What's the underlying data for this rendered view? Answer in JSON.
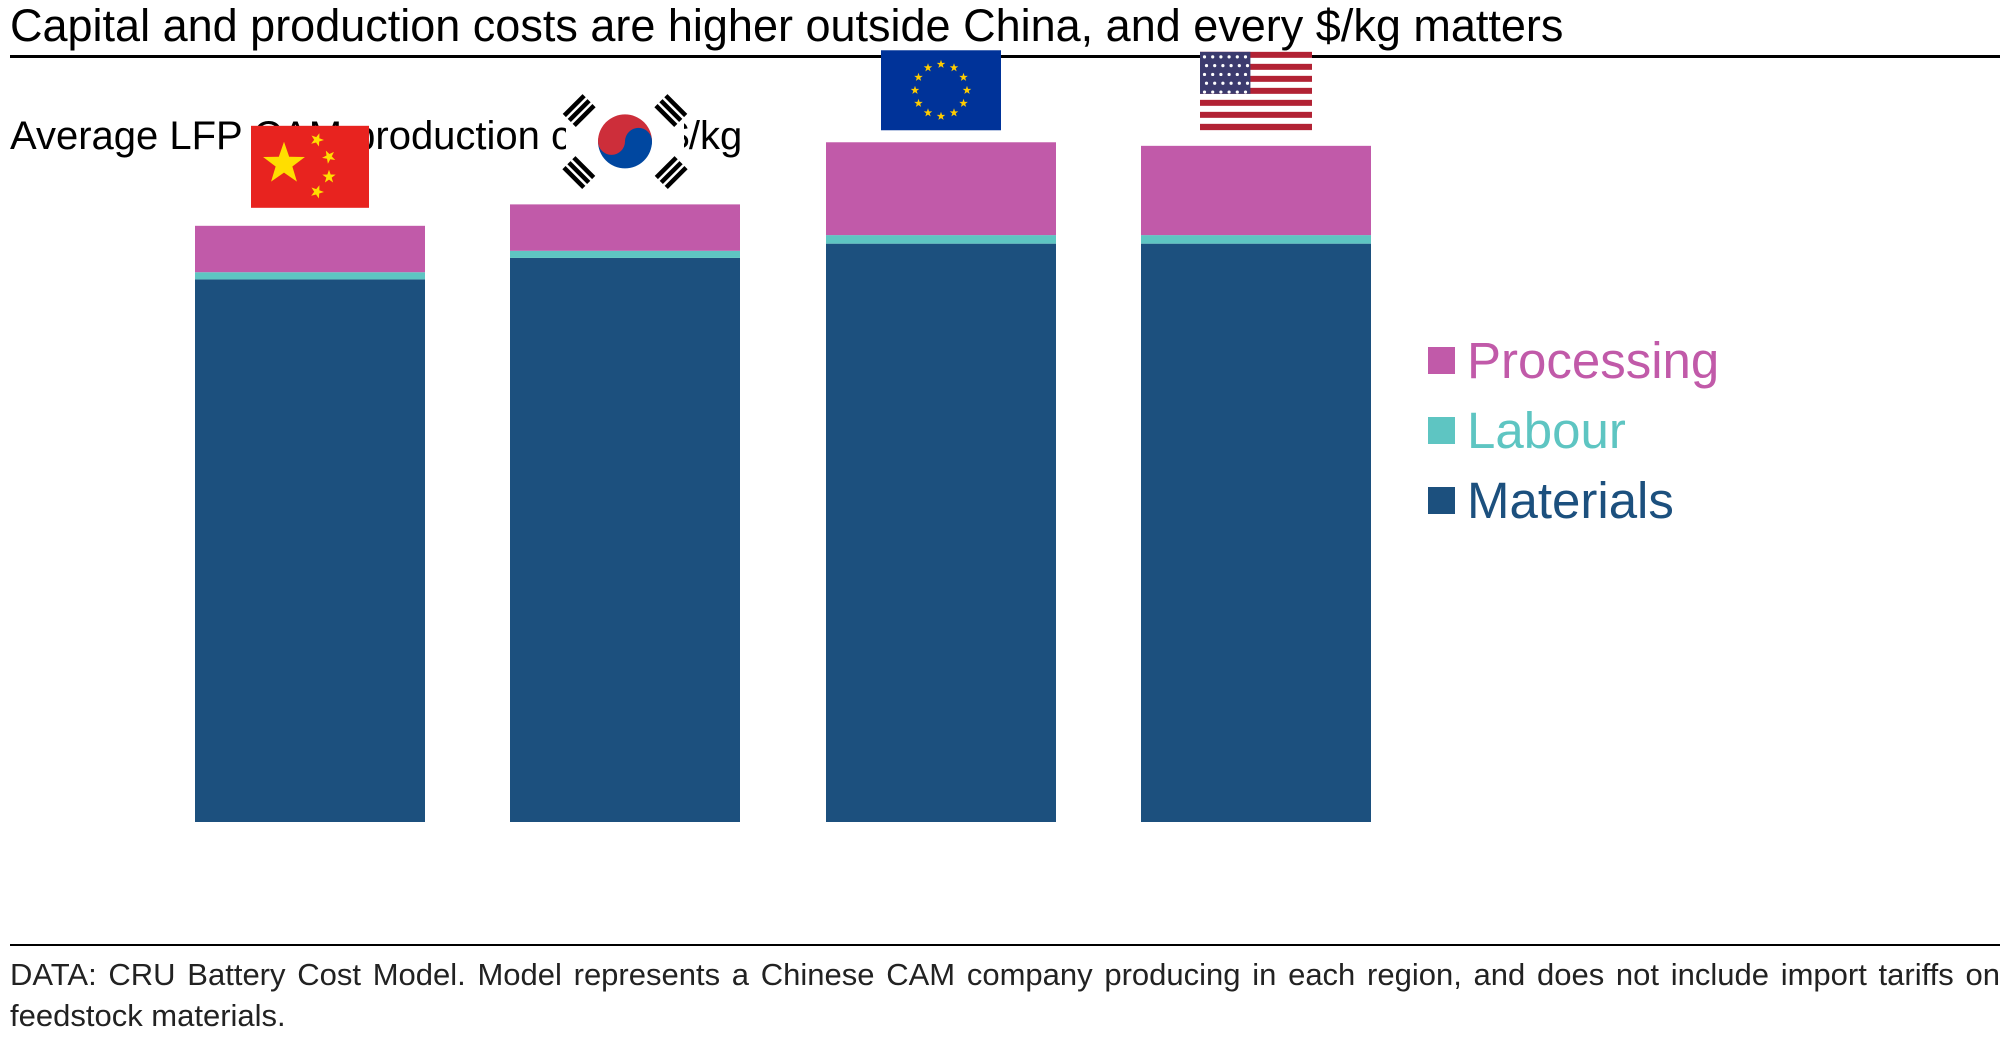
{
  "header": {
    "title": "Capital and production costs are higher outside China, and every $/kg matters"
  },
  "chart_data": {
    "type": "bar",
    "stacked": true,
    "title": "Average LFP CAM production costs, $/kg",
    "xlabel": "",
    "ylabel": "",
    "ylim": [
      0,
      10
    ],
    "grid": false,
    "legend_position": "right",
    "categories": [
      "China",
      "South Korea",
      "European Union",
      "United States"
    ],
    "category_icons": [
      "china-flag-icon",
      "south-korea-flag-icon",
      "eu-flag-icon",
      "us-flag-icon"
    ],
    "series": [
      {
        "name": "Materials",
        "color": "#1c507e",
        "values": [
          7.6,
          7.9,
          8.1,
          8.1
        ]
      },
      {
        "name": "Labour",
        "color": "#5ec5c2",
        "values": [
          0.1,
          0.1,
          0.12,
          0.12
        ]
      },
      {
        "name": "Processing",
        "color": "#c15aa9",
        "values": [
          0.65,
          0.65,
          1.3,
          1.25
        ]
      }
    ],
    "legend": [
      "Processing",
      "Labour",
      "Materials"
    ]
  },
  "footer": {
    "source": "DATA: CRU Battery Cost Model. Model represents a Chinese CAM company producing in each region, and does not include import tariffs on feedstock materials."
  }
}
